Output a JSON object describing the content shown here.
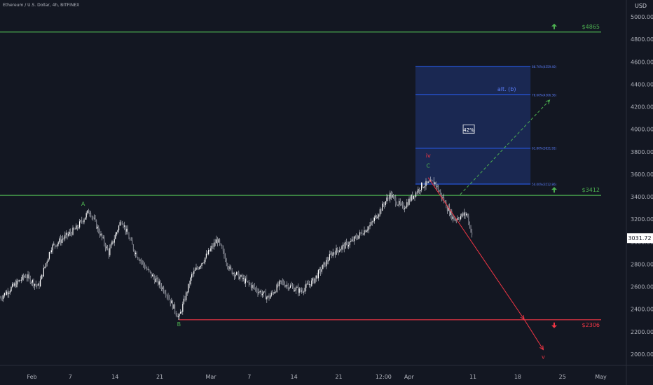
{
  "header": {
    "title": "Ethereum / U.S. Dollar, 4h, BITFINEX",
    "currency": "USD"
  },
  "chart_data": {
    "type": "candlestick",
    "ylim": [
      1900,
      5150
    ],
    "y_ticks": [
      2000,
      2200,
      2400,
      2600,
      2800,
      3000,
      3200,
      3400,
      3600,
      3800,
      4000,
      4200,
      4400,
      4600,
      4800,
      5000
    ],
    "y_tick_labels": [
      "2000.00",
      "2200.00",
      "2400.00",
      "2600.00",
      "2800.00",
      "3000.00",
      "3200.00",
      "3400.00",
      "3600.00",
      "3800.00",
      "4000.00",
      "4200.00",
      "4400.00",
      "4600.00",
      "4800.00",
      "5000.00"
    ],
    "x_ticks": [
      "Feb",
      "7",
      "14",
      "21",
      "Mar",
      "7",
      "14",
      "21",
      "12:00",
      "Apr",
      "11",
      "18",
      "25",
      "May"
    ],
    "x_range": [
      "2022-01-27",
      "2022-05-05"
    ],
    "x_tick_dates": [
      "2022-02-01",
      "2022-02-07",
      "2022-02-14",
      "2022-02-21",
      "2022-03-01",
      "2022-03-07",
      "2022-03-14",
      "2022-03-21",
      "2022-03-28",
      "2022-04-01",
      "2022-04-11",
      "2022-04-18",
      "2022-04-25",
      "2022-05-01"
    ],
    "last_price": "3031.72",
    "last_price_value": 3031.72,
    "price_path": [
      {
        "date": "2022-01-27",
        "price": 2500
      },
      {
        "date": "2022-01-31",
        "price": 2700
      },
      {
        "date": "2022-02-02",
        "price": 2600
      },
      {
        "date": "2022-02-04",
        "price": 2950
      },
      {
        "date": "2022-02-08",
        "price": 3120
      },
      {
        "date": "2022-02-10",
        "price": 3280
      },
      {
        "date": "2022-02-13",
        "price": 2900
      },
      {
        "date": "2022-02-15",
        "price": 3200
      },
      {
        "date": "2022-02-17",
        "price": 2920
      },
      {
        "date": "2022-02-19",
        "price": 2750
      },
      {
        "date": "2022-02-22",
        "price": 2550
      },
      {
        "date": "2022-02-24",
        "price": 2320
      },
      {
        "date": "2022-02-26",
        "price": 2700
      },
      {
        "date": "2022-02-28",
        "price": 2850
      },
      {
        "date": "2022-03-02",
        "price": 3020
      },
      {
        "date": "2022-03-04",
        "price": 2750
      },
      {
        "date": "2022-03-08",
        "price": 2580
      },
      {
        "date": "2022-03-10",
        "price": 2500
      },
      {
        "date": "2022-03-12",
        "price": 2640
      },
      {
        "date": "2022-03-15",
        "price": 2560
      },
      {
        "date": "2022-03-17",
        "price": 2650
      },
      {
        "date": "2022-03-20",
        "price": 2900
      },
      {
        "date": "2022-03-23",
        "price": 3000
      },
      {
        "date": "2022-03-26",
        "price": 3150
      },
      {
        "date": "2022-03-29",
        "price": 3420
      },
      {
        "date": "2022-03-31",
        "price": 3300
      },
      {
        "date": "2022-04-03",
        "price": 3500
      },
      {
        "date": "2022-04-05",
        "price": 3530
      },
      {
        "date": "2022-04-07",
        "price": 3300
      },
      {
        "date": "2022-04-08",
        "price": 3200
      },
      {
        "date": "2022-04-10",
        "price": 3250
      },
      {
        "date": "2022-04-11",
        "price": 3031
      }
    ],
    "levels": [
      {
        "price": 4865,
        "label": "$4865",
        "color": "#4caf50",
        "direction": "up"
      },
      {
        "price": 3412,
        "label": "$3412",
        "color": "#4caf50",
        "direction": "up"
      },
      {
        "price": 2306,
        "label": "$2306",
        "color": "#f23645",
        "direction": "down"
      }
    ],
    "fib_box": {
      "start_date": "2022-04-02",
      "end_date": "2022-04-20",
      "price_top": 4560,
      "price_bottom": 3512,
      "fill": "#1c2a58",
      "line_color": "#2962ff",
      "lines": [
        {
          "price": 4559.4,
          "label": "88.70%(4559.40)"
        },
        {
          "price": 4306.36,
          "label": "78.60%(4306.36)"
        },
        {
          "price": 3831.92,
          "label": "61.80%(3831.92)"
        },
        {
          "price": 3512.86,
          "label": "50.00%(3512.86)"
        }
      ],
      "probability": "42%",
      "probability_price": 3990,
      "alt_label": "alt. (b)",
      "alt_label_price": 4340
    },
    "wave_labels": [
      {
        "text": "A",
        "date": "2022-02-09",
        "price": 3320,
        "color": "#4caf50"
      },
      {
        "text": "B",
        "date": "2022-02-24",
        "price": 2250,
        "color": "#4caf50"
      },
      {
        "text": "C",
        "date": "2022-04-04",
        "price": 3660,
        "color": "#4caf50"
      },
      {
        "text": "iv",
        "date": "2022-04-04",
        "price": 3750,
        "color": "#f23645"
      },
      {
        "text": "v",
        "date": "2022-04-22",
        "price": 1960,
        "color": "#f23645"
      }
    ],
    "projections": [
      {
        "from": {
          "date": "2022-04-04",
          "price": 3570
        },
        "to": {
          "date": "2022-04-19",
          "price": 2310
        },
        "color": "#f23645",
        "dashed": false
      },
      {
        "from": {
          "date": "2022-04-19",
          "price": 2310
        },
        "to": {
          "date": "2022-04-22",
          "price": 2040
        },
        "color": "#f23645",
        "dashed": false
      },
      {
        "from": {
          "date": "2022-04-09",
          "price": 3420
        },
        "to": {
          "date": "2022-04-23",
          "price": 4260
        },
        "color": "#4caf50",
        "dashed": true
      }
    ]
  }
}
